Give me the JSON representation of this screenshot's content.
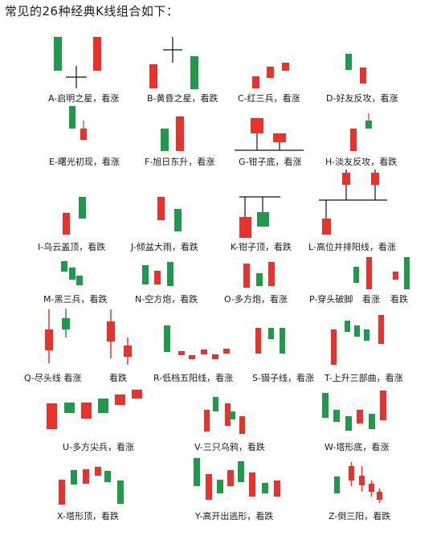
{
  "title": "常见的26种经典K线组合如下：",
  "colors": {
    "up": "#e8322b",
    "down": "#1f9a4b",
    "line": "#111111"
  },
  "patterns": [
    {
      "id": "A",
      "label": "A-启明之星，看涨"
    },
    {
      "id": "B",
      "label": "B-黄昏之星，看跌"
    },
    {
      "id": "C",
      "label": "C-红三兵，看涨"
    },
    {
      "id": "D",
      "label": "D-好友反攻，看涨"
    },
    {
      "id": "E",
      "label": "E-曙光初现，看涨"
    },
    {
      "id": "F",
      "label": "F-旭日东升，看涨"
    },
    {
      "id": "G",
      "label": "G-钳子底，看涨"
    },
    {
      "id": "H",
      "label": "H-淡友反攻，看跌"
    },
    {
      "id": "I",
      "label": "I-乌云盖顶，看跌"
    },
    {
      "id": "J",
      "label": "J-倾盆大雨，看跌"
    },
    {
      "id": "K",
      "label": "K-钳子顶，看跌"
    },
    {
      "id": "L",
      "label": "L-高位并排阳线，看涨"
    },
    {
      "id": "M",
      "label": "M-黑三兵，看跌"
    },
    {
      "id": "N",
      "label": "N-空方炮，看跌"
    },
    {
      "id": "O",
      "label": "O-多方炮，看涨"
    },
    {
      "id": "P",
      "label": "P-穿头破脚",
      "label2": "看涨",
      "label3": "看跌"
    },
    {
      "id": "Q",
      "label": "Q-尽头线  看涨",
      "label2": "看跌"
    },
    {
      "id": "R",
      "label": "R-低档五阳线，看涨"
    },
    {
      "id": "S",
      "label": "S-镊子线，看涨"
    },
    {
      "id": "T",
      "label": "T-上升三部曲，看涨"
    },
    {
      "id": "U",
      "label": "U-多方尖兵，看涨"
    },
    {
      "id": "V",
      "label": "V-三只乌鸦，看跌"
    },
    {
      "id": "W",
      "label": "W-塔形底，看涨"
    },
    {
      "id": "X",
      "label": "X-塔形顶，看跌"
    },
    {
      "id": "Y",
      "label": "Y-高开出逃形，看跌"
    },
    {
      "id": "Z",
      "label": "Z-倒三阳，看跌"
    }
  ]
}
